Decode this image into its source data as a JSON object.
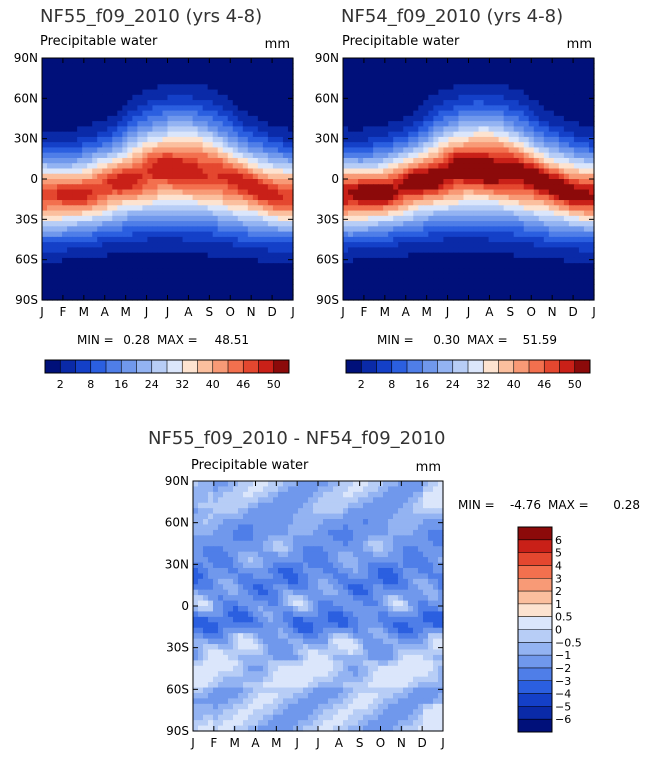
{
  "chart_data": [
    {
      "type": "heatmap",
      "title": "NF55_f09_2010 (yrs 4-8)",
      "subtitle": "Precipitable water",
      "units": "mm",
      "x_ticks": [
        "J",
        "F",
        "M",
        "A",
        "M",
        "J",
        "J",
        "A",
        "S",
        "O",
        "N",
        "D",
        "J"
      ],
      "y_ticks": [
        "90N",
        "60N",
        "30N",
        "0",
        "30S",
        "60S",
        "90S"
      ],
      "min_label": "MIN =",
      "min_value": "0.28",
      "max_label": "MAX =",
      "max_value": "48.51",
      "field": {
        "kind": "climatology",
        "peak": 48.51,
        "base": 0.28,
        "itcz_shift": 0
      }
    },
    {
      "type": "heatmap",
      "title": "NF54_f09_2010 (yrs 4-8)",
      "subtitle": "Precipitable water",
      "units": "mm",
      "x_ticks": [
        "J",
        "F",
        "M",
        "A",
        "M",
        "J",
        "J",
        "A",
        "S",
        "O",
        "N",
        "D",
        "J"
      ],
      "y_ticks": [
        "90N",
        "60N",
        "30N",
        "0",
        "30S",
        "60S",
        "90S"
      ],
      "min_label": "MIN =",
      "min_value": "0.30",
      "max_label": "MAX =",
      "max_value": "51.59",
      "field": {
        "kind": "climatology",
        "peak": 51.59,
        "base": 0.3,
        "itcz_shift": 1
      }
    },
    {
      "type": "heatmap",
      "title": "NF55_f09_2010 - NF54_f09_2010",
      "subtitle": "Precipitable water",
      "units": "mm",
      "x_ticks": [
        "J",
        "F",
        "M",
        "A",
        "M",
        "J",
        "J",
        "A",
        "S",
        "O",
        "N",
        "D",
        "J"
      ],
      "y_ticks": [
        "90N",
        "60N",
        "30N",
        "0",
        "30S",
        "60S",
        "90S"
      ],
      "min_label": "MIN =",
      "min_value": "-4.76",
      "max_label": "MAX =",
      "max_value": "0.28",
      "field": {
        "kind": "difference",
        "min": -4.76,
        "max": 0.28
      }
    }
  ],
  "colorbars": {
    "absolute": {
      "labels": [
        "2",
        "8",
        "16",
        "24",
        "32",
        "40",
        "46",
        "50"
      ],
      "levels": [
        2,
        5,
        8,
        12,
        16,
        20,
        24,
        28,
        32,
        36,
        40,
        43,
        46,
        48,
        50
      ],
      "colors": [
        "#00107a",
        "#0a2aa8",
        "#1440c8",
        "#2b5fe0",
        "#4f7ee8",
        "#7098ec",
        "#93b3f2",
        "#b7cdf6",
        "#dbe6fb",
        "#fde3d0",
        "#fbbf9e",
        "#f89a76",
        "#f3704e",
        "#e4472f",
        "#c92018",
        "#8c0a0a"
      ]
    },
    "difference": {
      "labels": [
        "6",
        "5",
        "4",
        "3",
        "2",
        "1",
        "0.5",
        "0",
        "−0.5",
        "−1",
        "−2",
        "−3",
        "−4",
        "−5",
        "−6"
      ],
      "levels": [
        -6,
        -5,
        -4,
        -3,
        -2,
        -1,
        -0.5,
        0,
        0.5,
        1,
        2,
        3,
        4,
        5,
        6
      ],
      "colors": [
        "#00107a",
        "#0a2aa8",
        "#1440c8",
        "#2b5fe0",
        "#4f7ee8",
        "#7098ec",
        "#93b3f2",
        "#b7cdf6",
        "#dbe6fb",
        "#fde3d0",
        "#fbbf9e",
        "#f89a76",
        "#f3704e",
        "#e4472f",
        "#c92018",
        "#8c0a0a"
      ]
    }
  }
}
